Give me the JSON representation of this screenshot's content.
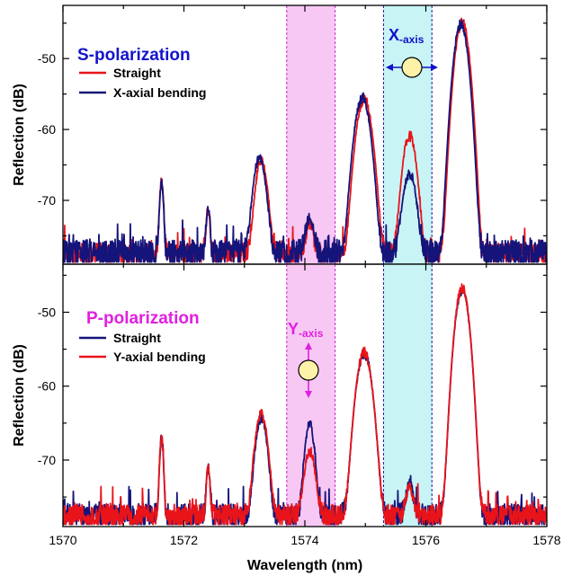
{
  "chart_data": [
    {
      "type": "line",
      "panel": "top",
      "title_label": "S-polarization",
      "xlabel": "",
      "ylabel": "Reflection (dB)",
      "xlim": [
        1570,
        1578
      ],
      "ylim": [
        -79,
        -42.5
      ],
      "yticks": [
        -70,
        -60,
        -50
      ],
      "ytick_labels": [
        "-70",
        "-60",
        "-50"
      ],
      "legend_position": "top-left",
      "annotation": {
        "text": "X",
        "subscript": "-axis",
        "arrow": "horizontal",
        "color": "#1010cc"
      },
      "bands": [
        {
          "x0": 1573.7,
          "x1": 1574.5,
          "color": "#f8c8f4",
          "edge": "#cc22cc"
        },
        {
          "x0": 1575.3,
          "x1": 1576.1,
          "color": "#c8f4f6",
          "edge": "#1a1aa0"
        }
      ],
      "series": [
        {
          "name": "Straight",
          "color": "#e8141a",
          "baseline": -77.5,
          "noise": 0.9,
          "peaks": [
            [
              1571.63,
              -67.5,
              0.025
            ],
            [
              1572.4,
              -72.3,
              0.025
            ],
            [
              1573.28,
              -64.5,
              0.07
            ],
            [
              1574.08,
              -75.5,
              0.05
            ],
            [
              1574.98,
              -55.8,
              0.09
            ],
            [
              1575.73,
              -61,
              0.08
            ],
            [
              1576.6,
              -45,
              0.08
            ]
          ]
        },
        {
          "name": "X-axial bending",
          "color": "#14147a",
          "baseline": -77.5,
          "noise": 1.2,
          "peaks": [
            [
              1571.63,
              -68,
              0.025
            ],
            [
              1572.4,
              -72,
              0.025
            ],
            [
              1573.25,
              -64.3,
              0.075
            ],
            [
              1574.08,
              -74.5,
              0.06
            ],
            [
              1574.95,
              -55.6,
              0.09
            ],
            [
              1575.73,
              -66.5,
              0.08
            ],
            [
              1576.58,
              -45.2,
              0.08
            ]
          ]
        }
      ]
    },
    {
      "type": "line",
      "panel": "bottom",
      "title_label": "P-polarization",
      "xlabel": "Wavelength (nm)",
      "ylabel": "Reflection (dB)",
      "xlim": [
        1570,
        1578
      ],
      "ylim": [
        -79,
        -43.5
      ],
      "xticks": [
        1570,
        1572,
        1574,
        1576,
        1578
      ],
      "xtick_labels": [
        "1570",
        "1572",
        "1574",
        "1576",
        "1578"
      ],
      "yticks": [
        -70,
        -60,
        -50
      ],
      "ytick_labels": [
        "-70",
        "-60",
        "-50"
      ],
      "legend_position": "top-left",
      "annotation": {
        "text": "Y",
        "subscript": "-axis",
        "arrow": "vertical",
        "color": "#e020e0"
      },
      "bands": [
        {
          "x0": 1573.7,
          "x1": 1574.5,
          "color": "#f8c8f4",
          "edge": "#cc22cc"
        },
        {
          "x0": 1575.3,
          "x1": 1576.1,
          "color": "#c8f4f6",
          "edge": "#1a1aa0"
        }
      ],
      "series": [
        {
          "name": "Straight",
          "color": "#14147a",
          "baseline": -77.5,
          "noise": 1.0,
          "peaks": [
            [
              1571.63,
              -67.5,
              0.025
            ],
            [
              1572.4,
              -72.3,
              0.025
            ],
            [
              1573.28,
              -64.5,
              0.07
            ],
            [
              1574.08,
              -65.5,
              0.06
            ],
            [
              1574.98,
              -55.6,
              0.09
            ],
            [
              1575.73,
              -75.5,
              0.05
            ],
            [
              1576.6,
              -47,
              0.08
            ]
          ]
        },
        {
          "name": "Y-axial bending",
          "color": "#e8141a",
          "baseline": -77.5,
          "noise": 0.9,
          "peaks": [
            [
              1571.63,
              -67.5,
              0.025
            ],
            [
              1572.4,
              -72.3,
              0.025
            ],
            [
              1573.28,
              -64,
              0.075
            ],
            [
              1574.08,
              -69.5,
              0.07
            ],
            [
              1574.98,
              -55.5,
              0.09
            ],
            [
              1575.73,
              -75.8,
              0.05
            ],
            [
              1576.6,
              -46.8,
              0.08
            ]
          ]
        }
      ]
    }
  ]
}
